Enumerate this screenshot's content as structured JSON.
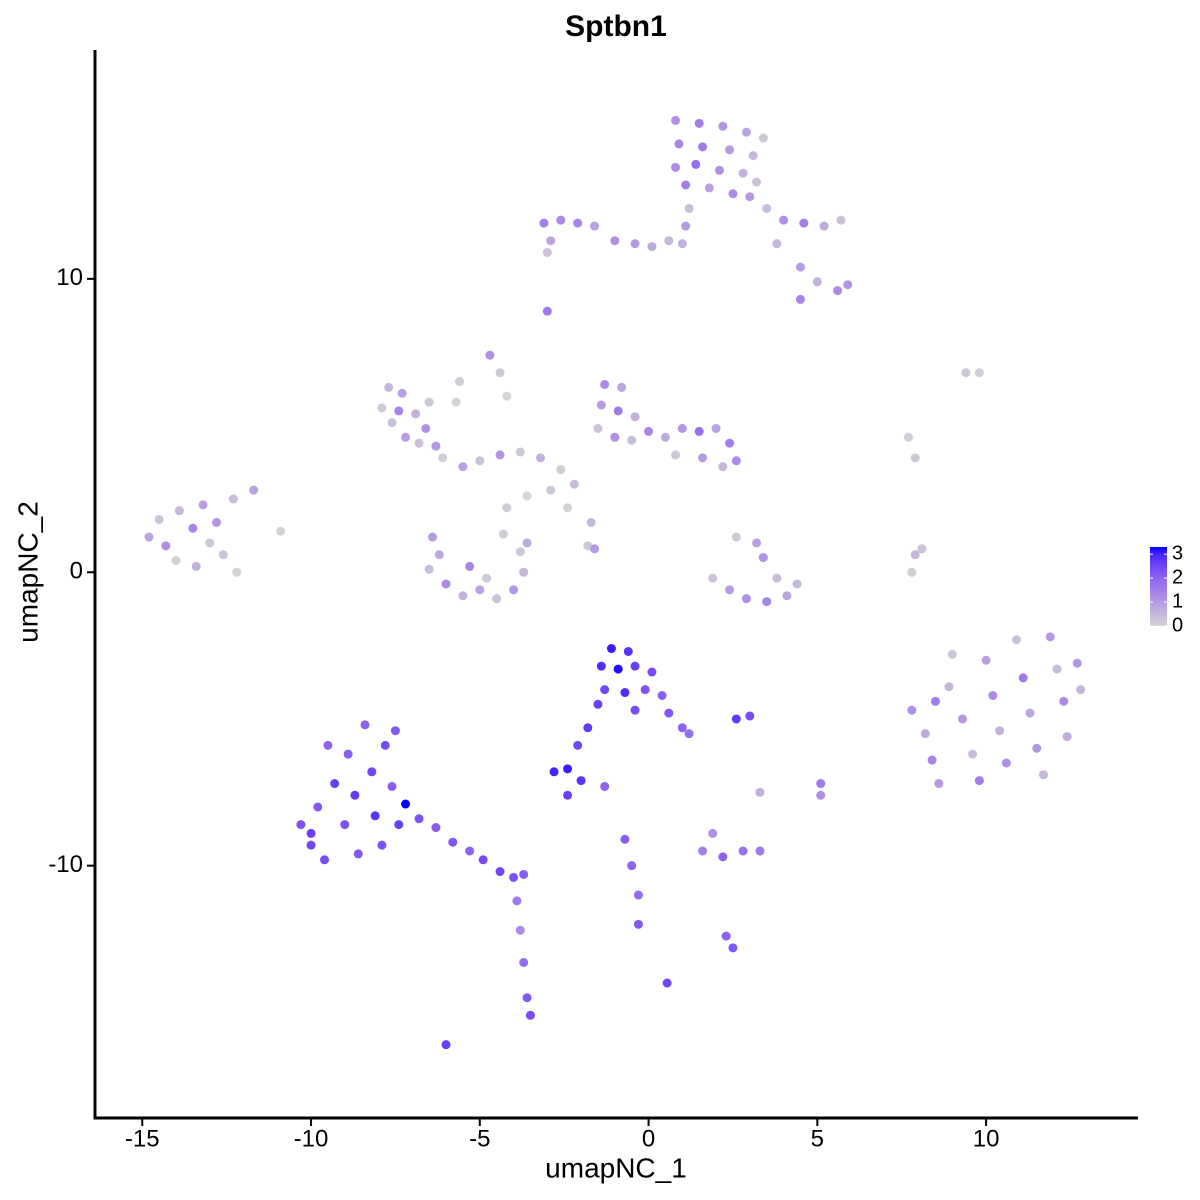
{
  "chart_data": {
    "type": "scatter",
    "title": "Sptbn1",
    "x_label": "umapNC_1",
    "y_label": "umapNC_2",
    "xlim": [
      -16.4,
      14.5
    ],
    "ylim": [
      -18.6,
      17.8
    ],
    "xticks": [
      -15,
      -10,
      -5,
      0,
      5,
      10
    ],
    "yticks": [
      -10,
      0,
      10
    ],
    "grid": false,
    "colorbar": {
      "lim": [
        0,
        3.3
      ],
      "ticks": [
        0,
        1,
        2,
        3
      ],
      "low": "#d3d3d3",
      "high": "#0000ff"
    },
    "x": [
      0.8,
      1.5,
      2.2,
      2.9,
      0.9,
      1.6,
      2.4,
      3.1,
      0.8,
      1.4,
      2.1,
      2.8,
      3.2,
      1.1,
      1.8,
      2.5,
      1.2,
      1.1,
      1.0,
      3.4,
      -3.1,
      -2.6,
      -2.1,
      -1.6,
      -2.9,
      -1.0,
      -0.4,
      0.1,
      0.6,
      -3.0,
      3.0,
      3.5,
      4.0,
      4.6,
      5.2,
      5.7,
      3.8,
      4.5,
      5.0,
      5.6,
      5.9,
      4.5,
      -3.0,
      -4.7,
      -4.4,
      9.4,
      9.8,
      -1.3,
      -0.8,
      -1.4,
      -0.9,
      -0.4,
      -1.5,
      -1.0,
      -0.5,
      0.0,
      0.5,
      1.0,
      1.5,
      2.0,
      2.4,
      2.6,
      2.2,
      1.6,
      0.8,
      -7.7,
      -7.3,
      -7.9,
      -7.6,
      -7.2,
      -6.8,
      -6.6,
      -6.9,
      -6.3,
      -6.5,
      -7.4,
      -6.1,
      -5.5,
      -5.0,
      -4.4,
      -3.8,
      -3.2,
      -2.6,
      -2.2,
      -2.9,
      -3.6,
      -4.2,
      -2.4,
      -1.7,
      -1.8,
      -1.6,
      -4.2,
      -5.6,
      -5.7,
      -14.8,
      -14.5,
      -14.3,
      -13.9,
      -13.5,
      -13.2,
      -13.0,
      -12.8,
      -12.6,
      -14.0,
      -13.4,
      -12.2,
      -11.7,
      -12.3,
      -10.9,
      -6.4,
      -6.2,
      -6.5,
      -6.0,
      -5.5,
      -5.0,
      -4.5,
      -4.0,
      -3.7,
      -3.8,
      -4.3,
      -5.3,
      -4.8,
      -3.6,
      1.9,
      2.4,
      2.9,
      3.5,
      4.1,
      4.4,
      3.2,
      3.4,
      2.6,
      3.8,
      7.7,
      7.9,
      7.8,
      7.9,
      8.1,
      7.8,
      8.2,
      8.4,
      8.6,
      8.9,
      9.3,
      9.6,
      9.8,
      10.0,
      10.2,
      10.4,
      10.6,
      10.9,
      11.1,
      11.3,
      11.5,
      11.7,
      11.9,
      12.1,
      12.3,
      12.4,
      12.7,
      12.8,
      9.0,
      8.5,
      -1.1,
      -0.6,
      -1.4,
      -0.9,
      -0.4,
      0.1,
      -1.3,
      -0.7,
      -0.1,
      0.4,
      -0.4,
      0.6,
      1.0,
      1.2,
      -1.5,
      -1.8,
      -2.1,
      -1.3,
      -2.8,
      -2.4,
      -2.0,
      -2.4,
      -10.3,
      -10.0,
      -9.8,
      -9.6,
      -9.3,
      -9.0,
      -8.9,
      -8.7,
      -8.6,
      -8.4,
      -8.2,
      -8.1,
      -7.9,
      -7.8,
      -7.6,
      -7.4,
      -7.5,
      -7.2,
      -9.5,
      -10.0,
      -6.8,
      -6.3,
      -5.8,
      -5.3,
      -4.9,
      -4.4,
      -4.0,
      -3.7,
      -3.9,
      -3.8,
      -3.7,
      -3.6,
      -3.5,
      -6.0,
      0.55,
      2.3,
      2.5,
      1.6,
      2.2,
      2.8,
      3.3,
      1.9,
      -0.7,
      -0.5,
      -0.3,
      -0.3,
      2.6,
      3.0,
      5.1,
      5.1,
      3.3
    ],
    "values": [
      15.4,
      15.3,
      15.2,
      15.0,
      14.6,
      14.5,
      14.4,
      14.2,
      13.8,
      13.9,
      13.7,
      13.6,
      13.3,
      13.2,
      13.1,
      12.9,
      12.4,
      11.8,
      11.2,
      14.8,
      11.9,
      12.0,
      11.9,
      11.8,
      11.3,
      11.3,
      11.2,
      11.1,
      11.3,
      10.9,
      12.8,
      12.4,
      12.0,
      11.9,
      11.8,
      12.0,
      11.2,
      10.4,
      9.9,
      9.6,
      9.8,
      9.3,
      8.9,
      7.4,
      6.8,
      6.8,
      6.8,
      6.4,
      6.3,
      5.7,
      5.5,
      5.3,
      4.9,
      4.6,
      4.5,
      4.8,
      4.6,
      4.9,
      4.8,
      4.9,
      4.4,
      3.8,
      3.6,
      3.9,
      4.0,
      6.3,
      6.1,
      5.6,
      5.1,
      4.6,
      4.4,
      4.9,
      5.4,
      4.3,
      5.8,
      5.5,
      3.9,
      3.6,
      3.8,
      4.0,
      4.1,
      3.9,
      3.5,
      3.0,
      2.8,
      2.6,
      2.2,
      2.2,
      1.7,
      0.9,
      0.8,
      6.0,
      6.5,
      5.8,
      1.2,
      1.8,
      0.9,
      2.1,
      1.5,
      2.3,
      1.0,
      1.7,
      0.6,
      0.4,
      0.2,
      0.0,
      2.8,
      2.5,
      1.4,
      1.2,
      0.6,
      0.1,
      -0.4,
      -0.8,
      -0.6,
      -0.9,
      -0.6,
      0.0,
      0.7,
      1.3,
      0.2,
      -0.2,
      1.0,
      -0.2,
      -0.6,
      -0.9,
      -1.0,
      -0.8,
      -0.4,
      1.0,
      0.5,
      1.2,
      -0.2,
      4.6,
      3.9,
      0.0,
      0.6,
      0.8,
      -4.7,
      -5.5,
      -6.4,
      -7.2,
      -3.9,
      -5.0,
      -6.2,
      -7.1,
      -3.0,
      -4.2,
      -5.4,
      -6.5,
      -2.3,
      -3.6,
      -4.8,
      -6.0,
      -6.9,
      -2.2,
      -3.3,
      -4.4,
      -5.6,
      -3.1,
      -4.0,
      -2.8,
      -4.4,
      -2.6,
      -2.7,
      -3.2,
      -3.3,
      -3.2,
      -3.4,
      -4.0,
      -4.1,
      -4.0,
      -4.2,
      -4.7,
      -4.8,
      -5.3,
      -5.5,
      -4.5,
      -5.3,
      -5.9,
      -7.3,
      -6.8,
      -6.7,
      -7.1,
      -7.6,
      -8.6,
      -9.3,
      -8.0,
      -9.8,
      -7.2,
      -8.6,
      -6.2,
      -7.6,
      -9.6,
      -5.2,
      -6.8,
      -8.3,
      -9.3,
      -5.9,
      -7.3,
      -8.6,
      -5.4,
      -7.9,
      -5.9,
      -8.9,
      -8.4,
      -8.7,
      -9.2,
      -9.5,
      -9.8,
      -10.2,
      -10.4,
      -10.3,
      -11.2,
      -12.2,
      -13.3,
      -14.5,
      -15.1,
      -16.1,
      -14.0,
      -12.4,
      -12.8,
      -9.5,
      -9.7,
      -9.5,
      -9.5,
      -8.9,
      -9.1,
      -10.0,
      -11.0,
      -12.0,
      -5.0,
      -4.9,
      -7.2,
      -7.6,
      -7.5
    ],
    "expression": [
      1.2,
      1.5,
      1.1,
      0.8,
      1.4,
      1.6,
      1.0,
      0.5,
      1.3,
      1.8,
      1.2,
      0.6,
      0.3,
      1.5,
      0.9,
      1.3,
      0.4,
      1.0,
      0.6,
      0.2,
      1.5,
      1.3,
      1.4,
      0.9,
      0.8,
      1.2,
      1.0,
      0.7,
      0.5,
      0.3,
      1.0,
      0.4,
      1.2,
      1.5,
      0.7,
      0.3,
      0.5,
      1.0,
      0.6,
      1.3,
      1.1,
      1.4,
      1.6,
      1.2,
      0.2,
      0.2,
      0.1,
      1.3,
      0.8,
      1.0,
      1.6,
      0.6,
      0.3,
      1.2,
      0.4,
      1.4,
      0.7,
      1.1,
      1.8,
      0.9,
      1.5,
      1.3,
      0.5,
      1.0,
      0.2,
      0.5,
      0.9,
      0.2,
      0.4,
      1.0,
      0.3,
      1.2,
      0.6,
      1.1,
      0.2,
      1.4,
      0.1,
      0.9,
      0.3,
      1.1,
      0.2,
      0.6,
      0.1,
      0.4,
      0.2,
      0.0,
      0.1,
      0.0,
      0.5,
      0.2,
      1.0,
      0.0,
      0.1,
      0.0,
      0.8,
      0.3,
      1.2,
      0.5,
      1.4,
      0.9,
      0.2,
      1.1,
      0.3,
      0.1,
      0.6,
      0.0,
      0.9,
      0.4,
      0.0,
      1.0,
      0.8,
      0.4,
      1.3,
      0.6,
      0.9,
      0.3,
      1.1,
      0.5,
      0.2,
      0.1,
      1.4,
      0.2,
      0.7,
      0.3,
      1.0,
      1.2,
      1.4,
      0.8,
      0.5,
      0.9,
      1.2,
      0.2,
      0.4,
      0.1,
      0.2,
      0.1,
      0.5,
      0.3,
      1.2,
      0.7,
      1.4,
      1.0,
      0.5,
      1.1,
      0.4,
      1.5,
      0.9,
      1.3,
      0.6,
      1.2,
      0.3,
      1.6,
      0.8,
      1.1,
      0.5,
      1.0,
      0.4,
      1.3,
      0.7,
      1.1,
      0.5,
      0.2,
      1.6,
      3.1,
      2.8,
      2.9,
      3.2,
      2.6,
      2.4,
      2.5,
      2.9,
      2.3,
      2.1,
      2.4,
      2.2,
      2.0,
      1.8,
      2.6,
      2.7,
      2.5,
      2.0,
      3.0,
      3.1,
      2.8,
      2.6,
      2.3,
      2.5,
      2.2,
      2.4,
      2.6,
      2.3,
      2.1,
      2.7,
      2.2,
      2.0,
      2.5,
      2.8,
      2.3,
      2.4,
      2.1,
      2.6,
      2.2,
      3.3,
      2.0,
      2.6,
      2.3,
      2.1,
      2.2,
      2.0,
      2.4,
      2.5,
      2.3,
      2.1,
      1.6,
      1.3,
      1.8,
      2.2,
      2.4,
      2.6,
      2.5,
      2.0,
      2.2,
      1.5,
      2.0,
      1.8,
      1.6,
      1.2,
      2.1,
      2.0,
      1.9,
      2.2,
      2.7,
      2.4,
      1.6,
      1.2,
      0.6
    ]
  }
}
